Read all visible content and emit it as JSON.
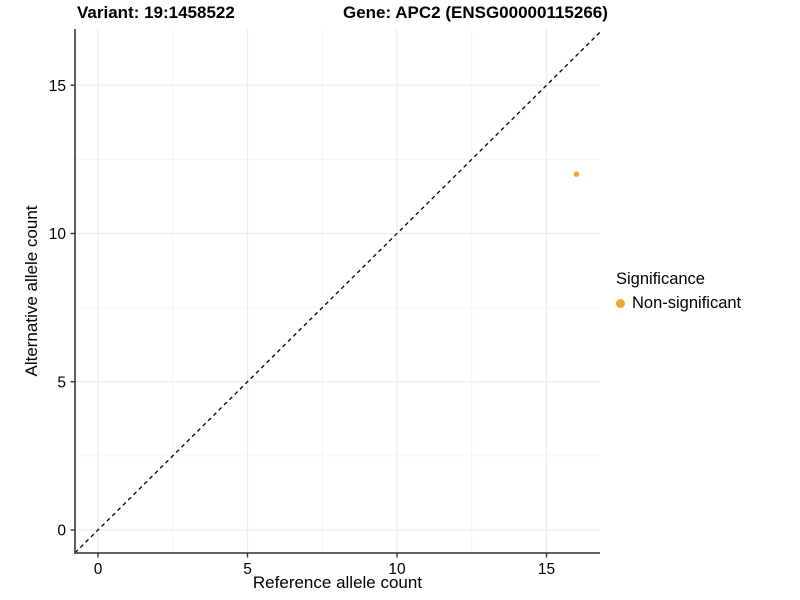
{
  "titles": {
    "variant": "Variant: 19:1458522",
    "gene": "Gene: APC2 (ENSG00000115266)"
  },
  "chart_data": {
    "type": "scatter",
    "title": "Variant: 19:1458522   Gene: APC2 (ENSG00000115266)",
    "xlabel": "Reference allele count",
    "ylabel": "Alternative allele count",
    "xlim": [
      -0.77,
      16.85
    ],
    "ylim": [
      -0.78,
      16.9
    ],
    "x_ticks": [
      0,
      5,
      10,
      15
    ],
    "y_ticks": [
      0,
      5,
      10,
      15
    ],
    "x_minor_ticks": [
      2.5,
      7.5,
      12.5
    ],
    "y_minor_ticks": [
      2.5,
      7.5,
      12.5
    ],
    "grid": "on",
    "identity_line": {
      "type": "dashed",
      "slope": 1,
      "intercept": 0,
      "color": "#000000"
    },
    "series": [
      {
        "name": "Non-significant",
        "color": "#FAA232",
        "points": [
          {
            "x": 16,
            "y": 12
          }
        ]
      }
    ],
    "legend": {
      "title": "Significance",
      "position": "right",
      "entries": [
        {
          "label": "Non-significant",
          "color": "#FAA232"
        }
      ]
    }
  },
  "colors": {
    "background": "#ffffff",
    "grid_major": "#ECECEC",
    "grid_minor": "#F4F4F4",
    "axis_line": "#4D4D4D",
    "tick": "#333333",
    "text": "#000000",
    "point_nonsignificant": "#FAA232"
  }
}
